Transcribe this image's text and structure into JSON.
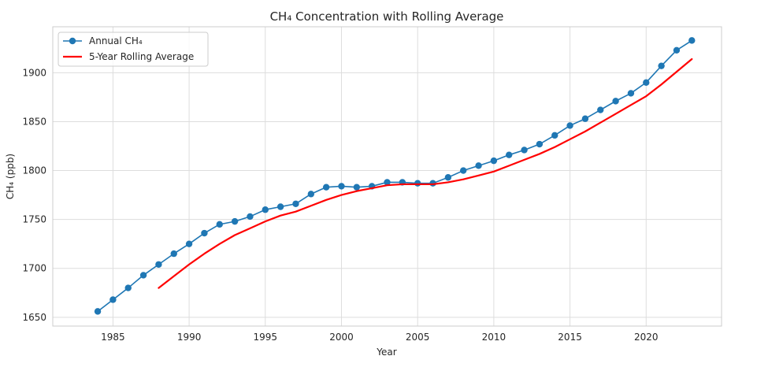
{
  "chart_data": {
    "type": "line",
    "title": "CH₄ Concentration with Rolling Average",
    "xlabel": "Year",
    "ylabel": "CH₄ (ppb)",
    "xlim": [
      1981.05,
      2024.95
    ],
    "ylim": [
      1641,
      1947
    ],
    "xticks": [
      1985,
      1990,
      1995,
      2000,
      2005,
      2010,
      2015,
      2020
    ],
    "yticks": [
      1650,
      1700,
      1750,
      1800,
      1850,
      1900
    ],
    "grid": true,
    "legend_position": "upper left",
    "x": [
      1984,
      1985,
      1986,
      1987,
      1988,
      1989,
      1990,
      1991,
      1992,
      1993,
      1994,
      1995,
      1996,
      1997,
      1998,
      1999,
      2000,
      2001,
      2002,
      2003,
      2004,
      2005,
      2006,
      2007,
      2008,
      2009,
      2010,
      2011,
      2012,
      2013,
      2014,
      2015,
      2016,
      2017,
      2018,
      2019,
      2020,
      2021,
      2022,
      2023
    ],
    "series": [
      {
        "name": "Annual CH₄",
        "color": "#1f77b4",
        "marker": "circle",
        "values": [
          1656,
          1668,
          1680,
          1693,
          1704,
          1715,
          1725,
          1736,
          1745,
          1748,
          1753,
          1760,
          1763,
          1766,
          1776,
          1783,
          1784,
          1783,
          1784,
          1788,
          1788,
          1787,
          1787,
          1793,
          1800,
          1805,
          1810,
          1816,
          1821,
          1827,
          1836,
          1846,
          1853,
          1862,
          1871,
          1879,
          1890,
          1907,
          1923,
          1933
        ]
      },
      {
        "name": "5-Year Rolling Average",
        "color": "#ff0000",
        "marker": "none",
        "values": [
          null,
          null,
          null,
          null,
          1680,
          1692,
          1704,
          1715,
          1725,
          1734,
          1741,
          1748,
          1754,
          1758,
          1764,
          1770,
          1775,
          1779,
          1782,
          1785,
          1786,
          1786,
          1786,
          1788,
          1791,
          1795,
          1799,
          1805,
          1811,
          1817,
          1824,
          1832,
          1840,
          1849,
          1858,
          1867,
          1876,
          1888,
          1901,
          1914
        ]
      }
    ]
  }
}
